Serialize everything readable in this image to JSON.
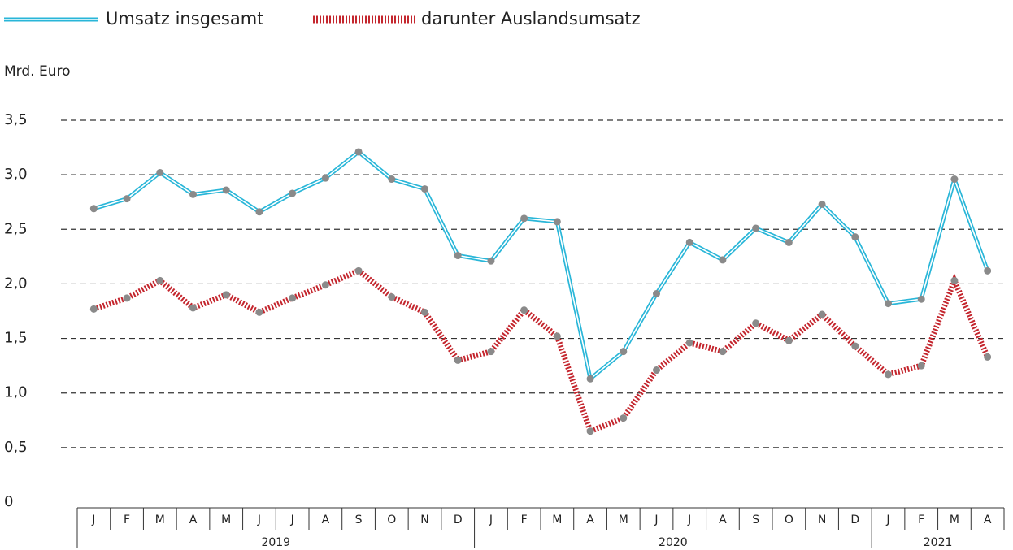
{
  "chart_data": {
    "type": "line",
    "y_axis_label": "Mrd. Euro",
    "groups": [
      {
        "label": "2019",
        "categories": [
          "J",
          "F",
          "M",
          "A",
          "M",
          "J",
          "J",
          "A",
          "S",
          "O",
          "N",
          "D"
        ]
      },
      {
        "label": "2020",
        "categories": [
          "J",
          "F",
          "M",
          "A",
          "M",
          "J",
          "J",
          "A",
          "S",
          "O",
          "N",
          "D"
        ]
      },
      {
        "label": "2021",
        "categories": [
          "J",
          "F",
          "M",
          "A"
        ]
      }
    ],
    "series": [
      {
        "name": "Umsatz insgesamt",
        "color": "#29b6d8",
        "style": "double",
        "values": [
          2.69,
          2.78,
          3.02,
          2.82,
          2.86,
          2.66,
          2.83,
          2.97,
          3.21,
          2.96,
          2.87,
          2.26,
          2.21,
          2.6,
          2.57,
          1.13,
          1.38,
          1.91,
          2.38,
          2.22,
          2.51,
          2.38,
          2.73,
          2.43,
          1.82,
          1.86,
          2.96,
          2.12
        ]
      },
      {
        "name": "darunter Auslandsumsatz",
        "color": "#c4262e",
        "style": "striped",
        "values": [
          1.77,
          1.87,
          2.03,
          1.78,
          1.9,
          1.74,
          1.87,
          1.99,
          2.12,
          1.88,
          1.74,
          1.3,
          1.38,
          1.76,
          1.52,
          0.65,
          0.77,
          1.21,
          1.46,
          1.38,
          1.64,
          1.48,
          1.72,
          1.43,
          1.17,
          1.25,
          2.03,
          1.33
        ]
      }
    ],
    "marker_color": "#8a8a8a",
    "ylim": [
      0,
      3.5
    ],
    "yticks": [
      0,
      {
        "value": 0.5,
        "label": "0,5"
      },
      {
        "value": 1,
        "label": "1,0"
      },
      {
        "value": 1.5,
        "label": "1,5"
      },
      {
        "value": 2,
        "label": "2,0"
      },
      {
        "value": 2.5,
        "label": "2,5"
      },
      {
        "value": 3,
        "label": "3,0"
      },
      {
        "value": 3.5,
        "label": "3,5"
      }
    ],
    "grid": true
  }
}
